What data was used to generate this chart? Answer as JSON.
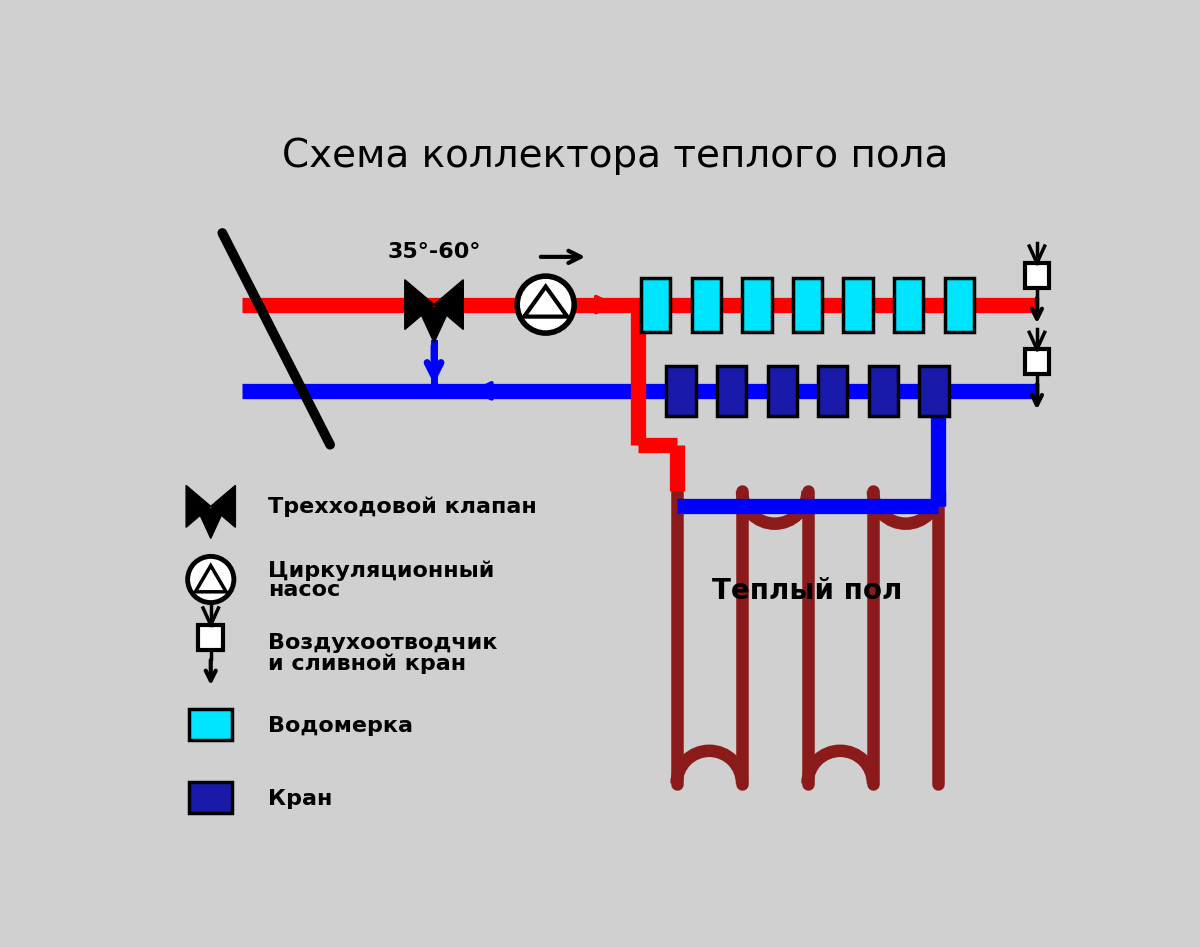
{
  "title": "Схема коллектора теплого пола",
  "bg_color": "#d0d0d0",
  "red_color": "#ff0000",
  "blue_color": "#0000ff",
  "dark_red_color": "#8b1a1a",
  "cyan_color": "#00e5ff",
  "dark_blue_color": "#1a1aaa",
  "black_color": "#000000",
  "white_color": "#ffffff",
  "temp_label": "35°-60°",
  "teplo_label": "Теплый пол",
  "leg_valve": "Трехходовой клапан",
  "leg_pump1": "Циркуляционный",
  "leg_pump2": "насос",
  "leg_vent1": "Воздухоотводчик",
  "leg_vent2": "и сливной кран",
  "leg_water": "Водомерка",
  "leg_valve2": "Кран"
}
